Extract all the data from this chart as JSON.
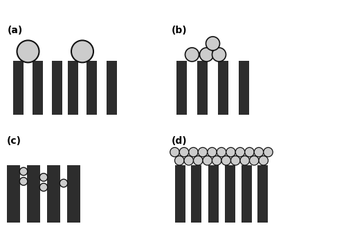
{
  "fig_width": 5.0,
  "fig_height": 3.53,
  "dpi": 100,
  "bg_color": "#ffffff",
  "bar_color": "#2d2d2d",
  "circle_face": "#cccccc",
  "circle_edge": "#111111",
  "label_fontsize": 10,
  "label_fontsize_small": 9,
  "panels": {
    "a": "(a)",
    "b": "(b)",
    "c": "(c)",
    "d": "(d)"
  }
}
